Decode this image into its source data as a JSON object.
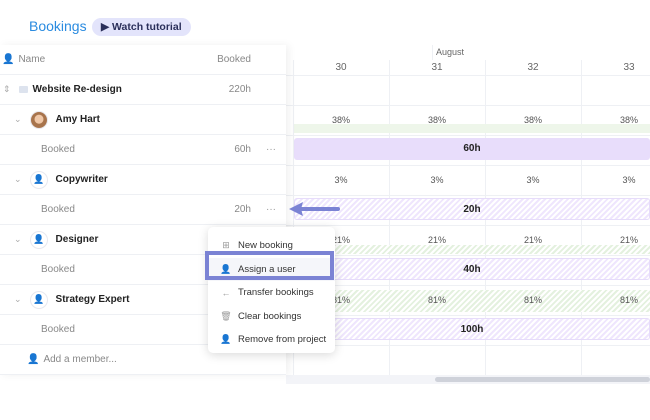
{
  "header": {
    "title": "Bookings",
    "tutorial_label": "Watch tutorial"
  },
  "table": {
    "name_header": "Name",
    "booked_header": "Booked"
  },
  "rows": [
    {
      "type": "project",
      "name": "Website Re-design",
      "hours": "220h"
    },
    {
      "type": "person",
      "name": "Amy Hart"
    },
    {
      "type": "booked",
      "name": "Booked",
      "hours": "60h"
    },
    {
      "type": "role",
      "name": "Copywriter"
    },
    {
      "type": "booked",
      "name": "Booked",
      "hours": "20h"
    },
    {
      "type": "role",
      "name": "Designer"
    },
    {
      "type": "booked",
      "name": "Booked"
    },
    {
      "type": "role",
      "name": "Strategy Expert"
    },
    {
      "type": "booked",
      "name": "Booked"
    }
  ],
  "add_member": "Add a member...",
  "timeline": {
    "month": "August",
    "weeks": [
      "30",
      "31",
      "32",
      "33"
    ],
    "amy_pct": [
      "38%",
      "38%",
      "38%",
      "38%"
    ],
    "amy_bar": "60h",
    "copy_pct": [
      "3%",
      "3%",
      "3%",
      "3%"
    ],
    "copy_bar": "20h",
    "designer_pct": [
      "21%",
      "21%",
      "21%",
      "21%"
    ],
    "designer_bar": "40h",
    "strategy_pct": [
      "81%",
      "81%",
      "81%",
      "81%"
    ],
    "strategy_bar": "100h"
  },
  "menu": {
    "items": [
      "New booking",
      "Assign a user",
      "Transfer bookings",
      "Clear bookings",
      "Remove from project"
    ]
  },
  "colors": {
    "accent": "#2a8be0",
    "highlight": "#7b83d4",
    "bar": "#e8ddfb"
  }
}
